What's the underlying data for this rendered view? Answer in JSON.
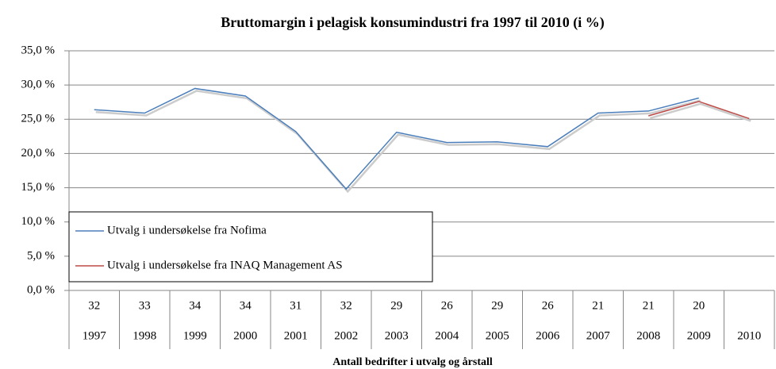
{
  "chart_data": {
    "type": "line",
    "title": "Bruttomargin i pelagisk konsumindustri fra 1997 til 2010 (i %)",
    "x_label": "Antall bedrifter i utvalg og årstall",
    "categories": [
      "1997",
      "1998",
      "1999",
      "2000",
      "2001",
      "2002",
      "2003",
      "2004",
      "2005",
      "2006",
      "2007",
      "2008",
      "2009",
      "2010"
    ],
    "counts": [
      32,
      33,
      34,
      34,
      31,
      32,
      29,
      26,
      29,
      26,
      21,
      21,
      20,
      null
    ],
    "series": [
      {
        "name": "Utvalg i undersøkelse fra Nofima",
        "color": "#4a7ebb",
        "values": [
          26.4,
          25.9,
          29.5,
          28.4,
          23.2,
          14.8,
          23.1,
          21.6,
          21.7,
          21.0,
          25.9,
          26.2,
          28.1,
          null
        ]
      },
      {
        "name": "Utvalg i undersøkelse fra INAQ Management AS",
        "color": "#be4b48",
        "values": [
          null,
          null,
          null,
          null,
          null,
          null,
          null,
          null,
          null,
          null,
          null,
          25.5,
          27.6,
          25.1
        ]
      }
    ],
    "ylim": [
      0,
      35
    ],
    "yticks": [
      {
        "value": 0,
        "label": "0,0 %"
      },
      {
        "value": 5,
        "label": "5,0 %"
      },
      {
        "value": 10,
        "label": "10,0 %"
      },
      {
        "value": 15,
        "label": "15,0 %"
      },
      {
        "value": 20,
        "label": "20,0 %"
      },
      {
        "value": 25,
        "label": "25,0 %"
      },
      {
        "value": 30,
        "label": "30,0 %"
      },
      {
        "value": 35,
        "label": "35,0 %"
      }
    ],
    "grid": true,
    "legend": "lower left"
  }
}
